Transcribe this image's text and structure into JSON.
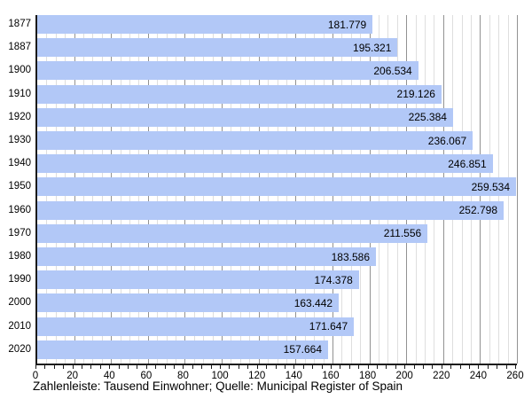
{
  "chart_data": {
    "type": "bar",
    "orientation": "horizontal",
    "title": "",
    "categories": [
      "1877",
      "1887",
      "1900",
      "1910",
      "1920",
      "1930",
      "1940",
      "1950",
      "1960",
      "1970",
      "1980",
      "1990",
      "2000",
      "2010",
      "2020"
    ],
    "values": [
      181779,
      195321,
      206534,
      219126,
      225384,
      236067,
      246851,
      259534,
      252798,
      211556,
      183586,
      174378,
      163442,
      171647,
      157664
    ],
    "value_labels": [
      "181.779",
      "195.321",
      "206.534",
      "219.126",
      "225.384",
      "236.067",
      "246.851",
      "259.534",
      "252.798",
      "211.556",
      "183.586",
      "174.378",
      "163.442",
      "171.647",
      "157.664"
    ],
    "x_axis": {
      "min": 0,
      "max": 260,
      "minor_tick_step": 5,
      "major_tick_step": 20,
      "tick_labels": [
        "0",
        "20",
        "40",
        "60",
        "80",
        "100",
        "120",
        "140",
        "160",
        "180",
        "200",
        "220",
        "240",
        "260"
      ]
    },
    "ylabel": "",
    "xlabel": "",
    "unit_note": "Tausend Einwohner",
    "source_note": "Municipal Register of Spain",
    "caption": "Zahlenleiste: Tausend Einwohner; Quelle: Municipal Register of Spain",
    "legend": "none",
    "grid": "vertical",
    "colors": {
      "bar": "#b2c8f7",
      "grid_minor": "#dedede",
      "grid_major": "#929292",
      "axis": "#1a1a1a",
      "text": "#000000",
      "background": "#ffffff"
    }
  }
}
